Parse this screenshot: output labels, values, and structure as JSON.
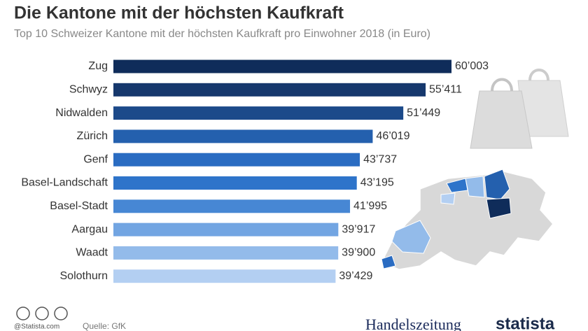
{
  "chart_data": {
    "type": "bar",
    "orientation": "horizontal",
    "title": "Die Kantone mit der höchsten Kaufkraft",
    "subtitle": "Top 10 Schweizer Kantone mit der höchsten Kaufkraft pro Einwohner 2018 (in Euro)",
    "categories": [
      "Zug",
      "Schwyz",
      "Nidwalden",
      "Zürich",
      "Genf",
      "Basel-Landschaft",
      "Basel-Stadt",
      "Aargau",
      "Waadt",
      "Solothurn"
    ],
    "values": [
      60003,
      55411,
      51449,
      46019,
      43737,
      43195,
      41995,
      39917,
      39900,
      39429
    ],
    "value_labels": [
      "60’003",
      "55’411",
      "51’449",
      "46’019",
      "43’737",
      "43’195",
      "41’995",
      "39’917",
      "39’900",
      "39’429"
    ],
    "colors": [
      "#0f2c5a",
      "#16386d",
      "#1c4a8a",
      "#2460ae",
      "#2a6cc2",
      "#2e74ca",
      "#4787d4",
      "#72a5e2",
      "#93bbea",
      "#b3cff2"
    ],
    "credit": "@Statista.com",
    "source": "Quelle: GfK",
    "logos": [
      "Handelszeitung",
      "statista"
    ]
  }
}
